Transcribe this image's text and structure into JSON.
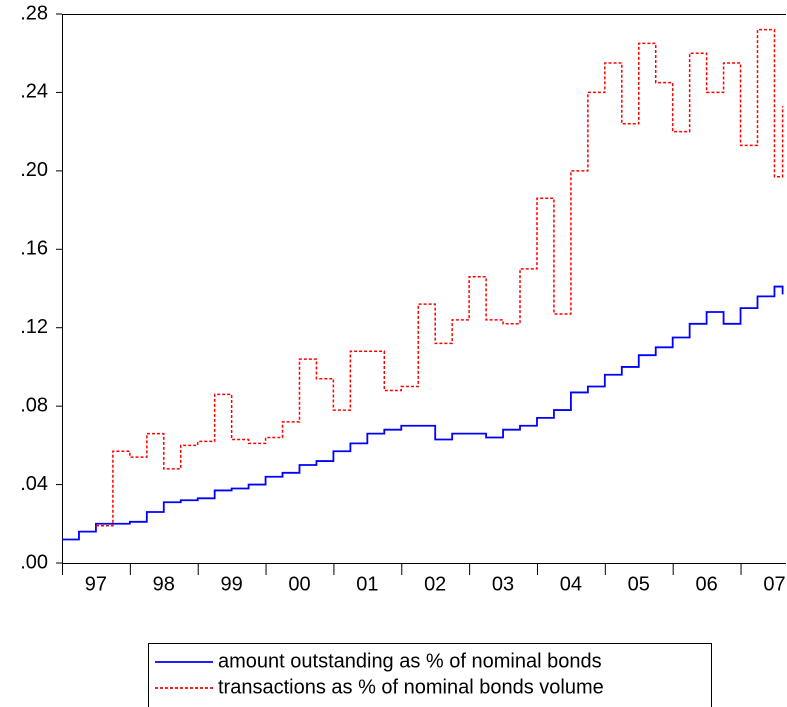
{
  "chart_data": {
    "type": "line",
    "step": true,
    "x": [
      1997.0,
      1997.25,
      1997.5,
      1997.75,
      1998.0,
      1998.25,
      1998.5,
      1998.75,
      1999.0,
      1999.25,
      1999.5,
      1999.75,
      2000.0,
      2000.25,
      2000.5,
      2000.75,
      2001.0,
      2001.25,
      2001.5,
      2001.75,
      2002.0,
      2002.25,
      2002.5,
      2002.75,
      2003.0,
      2003.25,
      2003.5,
      2003.75,
      2004.0,
      2004.25,
      2004.5,
      2004.75,
      2005.0,
      2005.25,
      2005.5,
      2005.75,
      2006.0,
      2006.25,
      2006.5,
      2006.75,
      2007.0,
      2007.25,
      2007.5,
      2007.62
    ],
    "series": [
      {
        "name": "amount outstanding as % of nominal bonds",
        "color": "#0000ff",
        "dash": false,
        "values": [
          0.012,
          0.016,
          0.02,
          0.02,
          0.021,
          0.026,
          0.031,
          0.032,
          0.033,
          0.037,
          0.038,
          0.04,
          0.044,
          0.046,
          0.05,
          0.052,
          0.057,
          0.061,
          0.066,
          0.068,
          0.07,
          0.07,
          0.063,
          0.066,
          0.066,
          0.064,
          0.068,
          0.07,
          0.074,
          0.078,
          0.087,
          0.09,
          0.096,
          0.1,
          0.106,
          0.11,
          0.115,
          0.122,
          0.128,
          0.122,
          0.13,
          0.136,
          0.141,
          0.137
        ]
      },
      {
        "name": "transactions as % of nominal bonds volume",
        "color": "#ff0000",
        "dash": true,
        "values": [
          null,
          null,
          0.019,
          0.057,
          0.054,
          0.066,
          0.048,
          0.06,
          0.062,
          0.086,
          0.063,
          0.061,
          0.064,
          0.072,
          0.104,
          0.094,
          0.078,
          0.108,
          0.108,
          0.088,
          0.09,
          0.132,
          0.112,
          0.124,
          0.146,
          0.124,
          0.122,
          0.15,
          0.186,
          0.127,
          0.2,
          0.24,
          0.255,
          0.224,
          0.265,
          0.245,
          0.22,
          0.26,
          0.24,
          0.255,
          0.213,
          0.272,
          0.197,
          0.233
        ]
      }
    ],
    "xlim": [
      1997,
      2007.67
    ],
    "xticks": [
      {
        "value": 1997,
        "label": "97"
      },
      {
        "value": 1998,
        "label": "98"
      },
      {
        "value": 1999,
        "label": "99"
      },
      {
        "value": 2000,
        "label": "00"
      },
      {
        "value": 2001,
        "label": "01"
      },
      {
        "value": 2002,
        "label": "02"
      },
      {
        "value": 2003,
        "label": "03"
      },
      {
        "value": 2004,
        "label": "04"
      },
      {
        "value": 2005,
        "label": "05"
      },
      {
        "value": 2006,
        "label": "06"
      },
      {
        "value": 2007,
        "label": "07"
      }
    ],
    "ylim": [
      0,
      0.28
    ],
    "yticks": [
      {
        "value": 0,
        "label": ".00"
      },
      {
        "value": 0.04,
        "label": ".04"
      },
      {
        "value": 0.08,
        "label": ".08"
      },
      {
        "value": 0.12,
        "label": ".12"
      },
      {
        "value": 0.16,
        "label": ".16"
      },
      {
        "value": 0.2,
        "label": ".20"
      },
      {
        "value": 0.24,
        "label": ".24"
      },
      {
        "value": 0.28,
        "label": ".28"
      }
    ],
    "grid": false
  }
}
